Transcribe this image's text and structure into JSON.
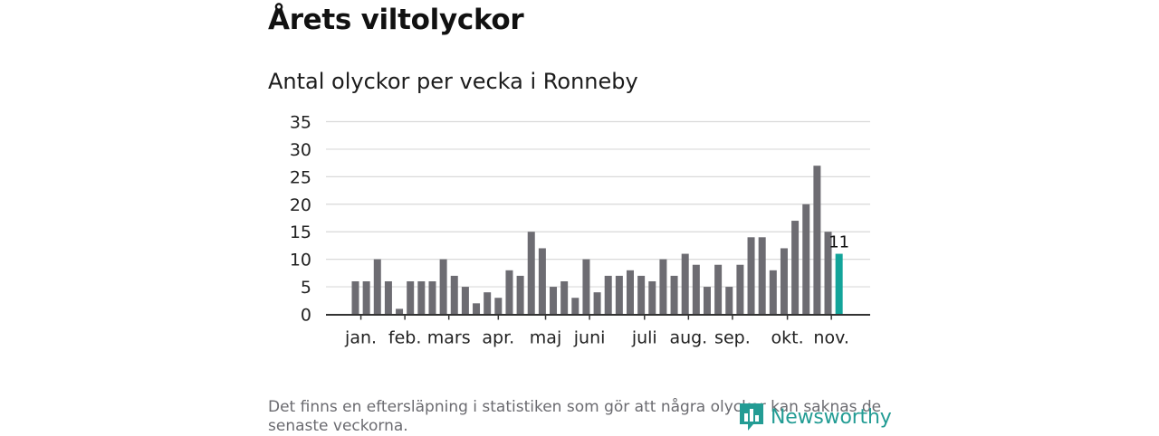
{
  "header": {
    "title": "Årets viltolyckor",
    "subtitle": "Antal olyckor per vecka i Ronneby"
  },
  "chart_data": {
    "type": "bar",
    "title": "Antal olyckor per vecka i Ronneby",
    "xlabel": "",
    "ylabel": "",
    "ylim": [
      0,
      35
    ],
    "yticks": [
      0,
      5,
      10,
      15,
      20,
      25,
      30,
      35
    ],
    "grid": true,
    "weeks": [
      1,
      2,
      3,
      4,
      5,
      6,
      7,
      8,
      9,
      10,
      11,
      12,
      13,
      14,
      15,
      16,
      17,
      18,
      19,
      20,
      21,
      22,
      23,
      24,
      25,
      26,
      27,
      28,
      29,
      30,
      31,
      32,
      33,
      34,
      35,
      36,
      37,
      38,
      39,
      40,
      41,
      42,
      43,
      44,
      45
    ],
    "values": [
      6,
      6,
      10,
      6,
      1,
      6,
      6,
      6,
      10,
      7,
      5,
      2,
      4,
      3,
      8,
      7,
      15,
      12,
      5,
      6,
      3,
      10,
      4,
      7,
      7,
      8,
      7,
      6,
      10,
      7,
      11,
      9,
      5,
      9,
      5,
      9,
      14,
      14,
      8,
      12,
      17,
      20,
      27,
      15,
      11
    ],
    "month_ticks": [
      {
        "label": "jan.",
        "week": 1.5
      },
      {
        "label": "feb.",
        "week": 5.5
      },
      {
        "label": "mars",
        "week": 9.5
      },
      {
        "label": "apr.",
        "week": 14
      },
      {
        "label": "maj",
        "week": 18.3
      },
      {
        "label": "juni",
        "week": 22.3
      },
      {
        "label": "juli",
        "week": 27.3
      },
      {
        "label": "aug.",
        "week": 31.3
      },
      {
        "label": "sep.",
        "week": 35.3
      },
      {
        "label": "okt.",
        "week": 40.3
      },
      {
        "label": "nov.",
        "week": 44.3
      }
    ],
    "highlight": {
      "week": 45,
      "value": 11,
      "label": "11"
    },
    "colors": {
      "bar": "#6d6c72",
      "highlight": "#13a49a",
      "grid": "#d9d9d9",
      "axis": "#333333",
      "text": "#222222"
    }
  },
  "footer": {
    "note": "Det finns en eftersläpning i statistiken som gör att några olyckor kan saknas de senaste veckorna.",
    "logo_text": "Newsworthy"
  }
}
